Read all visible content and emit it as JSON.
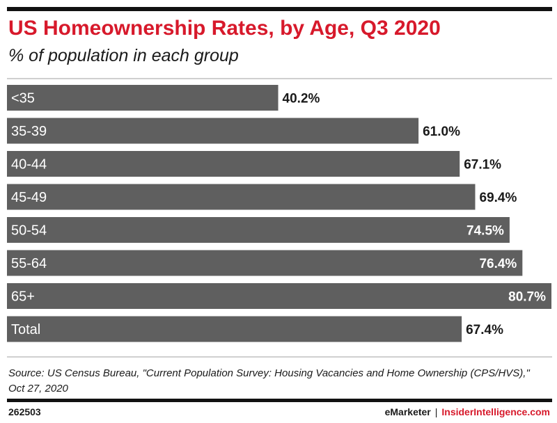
{
  "header": {
    "title": "US Homeownership Rates, by Age, Q3 2020",
    "subtitle": "% of population in each group"
  },
  "footer": {
    "source": "Source: US Census Bureau, \"Current Population Survey: Housing Vacancies and Home Ownership (CPS/HVS),\" Oct 27, 2020",
    "chart_id": "262503",
    "brand_left": "eMarketer",
    "brand_sep": "|",
    "brand_right": "InsiderIntelligence.com"
  },
  "colors": {
    "accent": "#d7192b",
    "bar": "#5f5f5f",
    "bar_label": "#ffffff",
    "value_label": "#1a1a1a"
  },
  "chart_data": {
    "type": "bar",
    "orientation": "horizontal",
    "title": "US Homeownership Rates, by Age, Q3 2020",
    "subtitle": "% of population in each group",
    "categories": [
      "<35",
      "35-39",
      "40-44",
      "45-49",
      "50-54",
      "55-64",
      "65+",
      "Total"
    ],
    "values": [
      40.2,
      61.0,
      67.1,
      69.4,
      74.5,
      76.4,
      80.7,
      67.4
    ],
    "value_labels": [
      "40.2%",
      "61.0%",
      "67.1%",
      "69.4%",
      "74.5%",
      "76.4%",
      "80.7%",
      "67.4%"
    ],
    "xlim": [
      0,
      80.7
    ],
    "grid": false,
    "legend": "none"
  }
}
